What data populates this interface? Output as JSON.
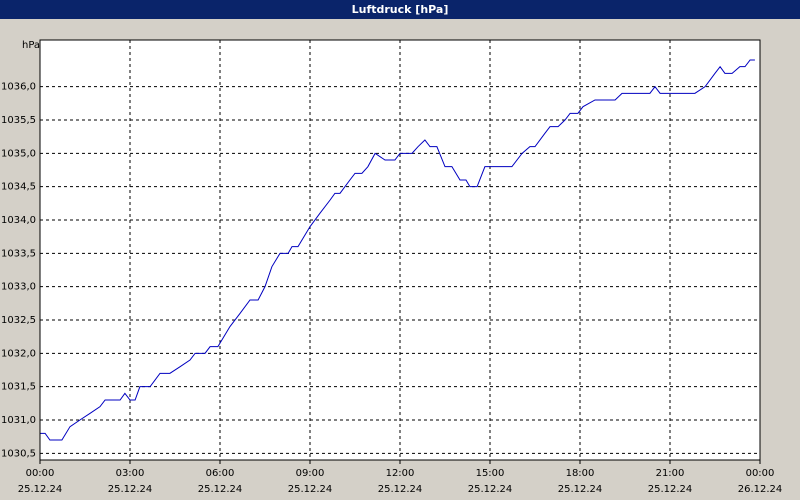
{
  "chart_data": {
    "type": "line",
    "title": "Luftdruck [hPa]",
    "y_label": "hPa",
    "x": [
      0,
      0.17,
      0.33,
      0.73,
      1,
      1.33,
      1.67,
      2,
      2.17,
      2.67,
      2.83,
      3,
      3.17,
      3.33,
      3.67,
      4,
      4.33,
      4.67,
      5,
      5.17,
      5.5,
      5.67,
      5.93,
      6.33,
      6.67,
      7,
      7.27,
      7.5,
      7.73,
      8,
      8.27,
      8.4,
      8.6,
      9,
      9.33,
      9.67,
      9.83,
      10,
      10.33,
      10.5,
      10.73,
      10.93,
      11.17,
      11.5,
      11.83,
      12,
      12.4,
      12.6,
      12.83,
      13,
      13.23,
      13.5,
      13.73,
      14,
      14.2,
      14.33,
      14.57,
      14.83,
      15.73,
      16.07,
      16.33,
      16.5,
      16.83,
      17,
      17.27,
      17.5,
      17.67,
      17.93,
      18.1,
      18.5,
      19.17,
      19.4,
      20.33,
      20.5,
      20.67,
      21.83,
      22.17,
      22.5,
      22.67,
      22.83,
      23.07,
      23.33,
      23.5,
      23.67,
      23.83
    ],
    "values": [
      1030.8,
      1030.8,
      1030.7,
      1030.7,
      1030.9,
      1031.0,
      1031.1,
      1031.2,
      1031.3,
      1031.3,
      1031.4,
      1031.3,
      1031.3,
      1031.5,
      1031.5,
      1031.7,
      1031.7,
      1031.8,
      1031.9,
      1032.0,
      1032.0,
      1032.1,
      1032.1,
      1032.4,
      1032.6,
      1032.8,
      1032.8,
      1033.0,
      1033.3,
      1033.5,
      1033.5,
      1033.6,
      1033.6,
      1033.9,
      1034.1,
      1034.3,
      1034.4,
      1034.4,
      1034.6,
      1034.7,
      1034.7,
      1034.8,
      1035.0,
      1034.9,
      1034.9,
      1035.0,
      1035.0,
      1035.1,
      1035.2,
      1035.1,
      1035.1,
      1034.8,
      1034.8,
      1034.6,
      1034.6,
      1034.5,
      1034.5,
      1034.8,
      1034.8,
      1035.0,
      1035.1,
      1035.1,
      1035.3,
      1035.4,
      1035.4,
      1035.5,
      1035.6,
      1035.6,
      1035.7,
      1035.8,
      1035.8,
      1035.9,
      1035.9,
      1036.0,
      1035.9,
      1035.9,
      1036.0,
      1036.2,
      1036.3,
      1036.2,
      1036.2,
      1036.3,
      1036.3,
      1036.4,
      1036.4
    ],
    "color": "#0000c0",
    "xlim": [
      0,
      24
    ],
    "xticks": [
      {
        "value": 0,
        "label": [
          "00:00",
          "25.12.24"
        ]
      },
      {
        "value": 3,
        "label": [
          "03:00",
          "25.12.24"
        ]
      },
      {
        "value": 6,
        "label": [
          "06:00",
          "25.12.24"
        ]
      },
      {
        "value": 9,
        "label": [
          "09:00",
          "25.12.24"
        ]
      },
      {
        "value": 12,
        "label": [
          "12:00",
          "25.12.24"
        ]
      },
      {
        "value": 15,
        "label": [
          "15:00",
          "25.12.24"
        ]
      },
      {
        "value": 18,
        "label": [
          "18:00",
          "25.12.24"
        ]
      },
      {
        "value": 21,
        "label": [
          "21:00",
          "25.12.24"
        ]
      },
      {
        "value": 24,
        "label": [
          "00:00",
          "26.12.24"
        ]
      }
    ],
    "ylim": [
      1030.4,
      1036.7
    ],
    "yticks": [
      {
        "value": 1030.5,
        "label": "1030,5"
      },
      {
        "value": 1031,
        "label": "1031,0"
      },
      {
        "value": 1031.5,
        "label": "1031,5"
      },
      {
        "value": 1032,
        "label": "1032,0"
      },
      {
        "value": 1032.5,
        "label": "1032,5"
      },
      {
        "value": 1033,
        "label": "1033,0"
      },
      {
        "value": 1033.5,
        "label": "1033,5"
      },
      {
        "value": 1034,
        "label": "1034,0"
      },
      {
        "value": 1034.5,
        "label": "1034,5"
      },
      {
        "value": 1035,
        "label": "1035,0"
      },
      {
        "value": 1035.5,
        "label": "1035,5"
      },
      {
        "value": 1036,
        "label": "1036,0"
      }
    ],
    "grid": true
  }
}
